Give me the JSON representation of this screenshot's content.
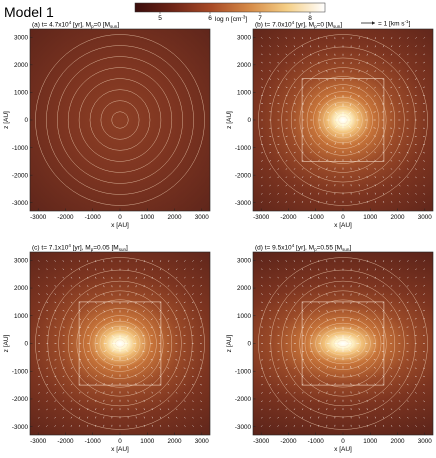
{
  "figure_title": "Model 1",
  "colorbar": {
    "label": "log n [cm",
    "label_exp": "-3",
    "label_close": "]",
    "min": 4.5,
    "max": 8.3,
    "ticks": [
      "5",
      "6",
      "7",
      "8"
    ],
    "tick_values": [
      5,
      6,
      7,
      8
    ],
    "colors": [
      "#3a0d0c",
      "#6e2517",
      "#a84a26",
      "#d58a47",
      "#f5cf86",
      "#ffffff"
    ]
  },
  "velocity_key": {
    "arrow": "→",
    "text": "= 1 [km s",
    "exp": "-1",
    "close": "]"
  },
  "chart_data": [
    {
      "type": "heatmap",
      "panel": "(a)",
      "title_prefix": "(a) t= 4.7x10",
      "title_exp": "4",
      "title_mid": " [yr], M",
      "title_sub": "p",
      "title_mass": "=0 [M",
      "title_sub2": "sun",
      "title_close": "]",
      "xlabel": "x [AU]",
      "ylabel": "z [AU]",
      "xlim": [
        -3300,
        3300
      ],
      "ylim": [
        -3300,
        3300
      ],
      "xticks": [
        -3000,
        -2000,
        -1000,
        0,
        1000,
        2000,
        3000
      ],
      "yticks": [
        -3000,
        -2000,
        -1000,
        0,
        1000,
        2000,
        3000
      ],
      "contour_radii": [
        300,
        700,
        1100,
        1500,
        1900,
        2300,
        2700,
        3100
      ],
      "contour_aspect": 1.0,
      "core_radius": 0,
      "velocity_field": false,
      "box": null
    },
    {
      "type": "heatmap",
      "panel": "(b)",
      "title_prefix": "(b) t= 7.0x10",
      "title_exp": "4",
      "title_mid": " [yr], M",
      "title_sub": "p",
      "title_mass": "=0 [M",
      "title_sub2": "sun",
      "title_close": "]",
      "xlabel": "x [AU]",
      "ylabel": "z [AU]",
      "xlim": [
        -3300,
        3300
      ],
      "ylim": [
        -3300,
        3300
      ],
      "xticks": [
        -3000,
        -2000,
        -1000,
        0,
        1000,
        2000,
        3000
      ],
      "yticks": [
        -3000,
        -2000,
        -1000,
        0,
        1000,
        2000,
        3000
      ],
      "contour_radii": [
        150,
        260,
        380,
        520,
        680,
        860,
        1060,
        1300,
        1580,
        1900,
        2250,
        2650,
        3100
      ],
      "contour_aspect": 1.15,
      "core_radius": 220,
      "velocity_field": true,
      "box": [
        -1500,
        1500
      ]
    },
    {
      "type": "heatmap",
      "panel": "(c)",
      "title_prefix": "(c) t= 7.1x10",
      "title_exp": "4",
      "title_mid": " [yr], M",
      "title_sub": "p",
      "title_mass": "=0.05 [M",
      "title_sub2": "sun",
      "title_close": "]",
      "xlabel": "x [AU]",
      "ylabel": "z [AU]",
      "xlim": [
        -3300,
        3300
      ],
      "ylim": [
        -3300,
        3300
      ],
      "xticks": [
        -3000,
        -2000,
        -1000,
        0,
        1000,
        2000,
        3000
      ],
      "yticks": [
        -3000,
        -2000,
        -1000,
        0,
        1000,
        2000,
        3000
      ],
      "contour_radii": [
        150,
        260,
        380,
        520,
        680,
        860,
        1060,
        1300,
        1580,
        1900,
        2250,
        2650,
        3100
      ],
      "contour_aspect": 1.3,
      "core_radius": 260,
      "velocity_field": true,
      "box": [
        -1500,
        1500
      ]
    },
    {
      "type": "heatmap",
      "panel": "(d)",
      "title_prefix": "(d) t= 9.5x10",
      "title_exp": "4",
      "title_mid": " [yr], M",
      "title_sub": "p",
      "title_mass": "=0.55 [M",
      "title_sub2": "sun",
      "title_close": "]",
      "xlabel": "x [AU]",
      "ylabel": "z [AU]",
      "xlim": [
        -3300,
        3300
      ],
      "ylim": [
        -3300,
        3300
      ],
      "xticks": [
        -3000,
        -2000,
        -1000,
        0,
        1000,
        2000,
        3000
      ],
      "yticks": [
        -3000,
        -2000,
        -1000,
        0,
        1000,
        2000,
        3000
      ],
      "contour_radii": [
        150,
        260,
        380,
        520,
        680,
        860,
        1060,
        1300,
        1580,
        1900,
        2250,
        2650,
        3100
      ],
      "contour_aspect": 1.8,
      "core_radius": 200,
      "velocity_field": true,
      "box": [
        -1500,
        1500
      ]
    }
  ]
}
